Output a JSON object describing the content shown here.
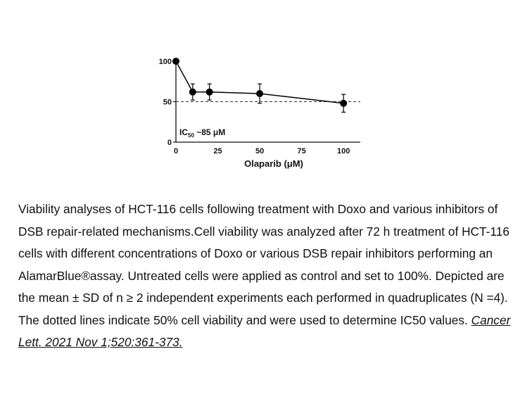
{
  "chart_data": {
    "type": "line",
    "x": [
      0,
      10,
      20,
      50,
      100
    ],
    "y": [
      100,
      62,
      62,
      60,
      48
    ],
    "error": [
      0,
      10,
      10,
      12,
      11
    ],
    "xlabel": "Olaparib (μM)",
    "ylabel": "",
    "xlim": [
      0,
      110
    ],
    "ylim": [
      0,
      100
    ],
    "xticks": [
      "0",
      "25",
      "50",
      "75",
      "100"
    ],
    "yticks": [
      "0",
      "50",
      "100"
    ],
    "reference_line": {
      "y": 50,
      "style": "dashed"
    },
    "annotation": {
      "prefix": "IC",
      "sub": "50",
      "suffix": " ~85 μM"
    },
    "grid": false,
    "color": "#000000"
  },
  "caption": {
    "text": "Viability analyses of HCT-116 cells following treatment with Doxo and various inhibitors of DSB repair-related mechanisms.Cell viability was analyzed after 72 h treatment of HCT-116 cells with different concentrations of Doxo or various DSB repair inhibitors performing an AlamarBlue®assay. Untreated cells were applied as control and set to 100%. Depicted are the mean ± SD of n ≥ 2 independent experiments each performed in quadruplicates (N =4). The dotted lines indicate 50% cell viability and were used to determine IC50 values. ",
    "citation": "Cancer Lett. 2021 Nov 1;520:361-373."
  }
}
